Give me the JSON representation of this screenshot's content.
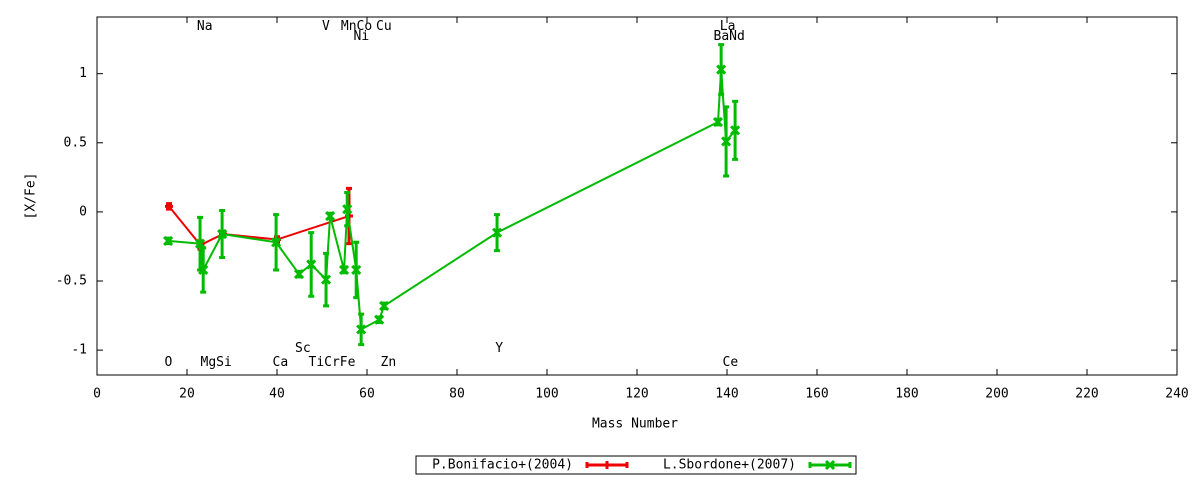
{
  "chart_data": {
    "type": "errorbar-line",
    "xlabel": "Mass Number",
    "ylabel": "[X/Fe]",
    "xlim": [
      0,
      240
    ],
    "xticks": [
      0,
      20,
      40,
      60,
      80,
      100,
      120,
      140,
      160,
      180,
      200,
      220,
      240
    ],
    "ylim": [
      -1.18,
      1.41
    ],
    "yticks": [
      -1,
      -0.5,
      0,
      0.5,
      1
    ],
    "series": [
      {
        "name": "P.Bonifacio+(2004)",
        "color": "#ee0000",
        "x": [
          16,
          23,
          28,
          40,
          56
        ],
        "values": [
          0.04,
          -0.24,
          -0.16,
          -0.2,
          -0.03
        ],
        "errors": [
          0.02,
          0.03,
          0.02,
          0.02,
          0.2
        ]
      },
      {
        "name": "L.Sbordone+(2007)",
        "color": "#00bb00",
        "x": [
          15.8,
          22.9,
          23.6,
          27.8,
          39.8,
          44.9,
          47.6,
          50.9,
          51.8,
          54.9,
          55.6,
          57.6,
          58.7,
          62.7,
          63.8,
          88.9,
          138,
          138.7,
          139.8,
          141.8
        ],
        "values": [
          -0.21,
          -0.23,
          -0.42,
          -0.16,
          -0.22,
          -0.45,
          -0.38,
          -0.49,
          -0.03,
          -0.42,
          0.02,
          -0.42,
          -0.85,
          -0.78,
          -0.68,
          -0.15,
          0.65,
          1.03,
          0.51,
          0.59
        ],
        "errors": [
          0.02,
          0.19,
          0.16,
          0.17,
          0.2,
          0.02,
          0.23,
          0.19,
          0.02,
          0.02,
          0.12,
          0.2,
          0.11,
          0.02,
          0.02,
          0.13,
          0.02,
          0.18,
          0.25,
          0.21
        ]
      }
    ],
    "annotations": [
      {
        "text": "Na",
        "x": 22.2,
        "y": 1.34
      },
      {
        "text": "V",
        "x": 50,
        "y": 1.34
      },
      {
        "text": "MnCo",
        "x": 54.2,
        "y": 1.34
      },
      {
        "text": "Cu",
        "x": 62,
        "y": 1.34
      },
      {
        "text": "Ni",
        "x": 57,
        "y": 1.27
      },
      {
        "text": "La",
        "x": 138.4,
        "y": 1.34
      },
      {
        "text": "BaNd",
        "x": 137,
        "y": 1.27
      },
      {
        "text": "Sc",
        "x": 44,
        "y": -0.99
      },
      {
        "text": "Y",
        "x": 88.5,
        "y": -0.99
      },
      {
        "text": "O",
        "x": 15,
        "y": -1.09
      },
      {
        "text": "MgSi",
        "x": 23,
        "y": -1.09
      },
      {
        "text": "Ca",
        "x": 39,
        "y": -1.09
      },
      {
        "text": "TiCrFe",
        "x": 47,
        "y": -1.09
      },
      {
        "text": "Zn",
        "x": 63,
        "y": -1.09
      },
      {
        "text": "Ce",
        "x": 139,
        "y": -1.09
      }
    ]
  }
}
